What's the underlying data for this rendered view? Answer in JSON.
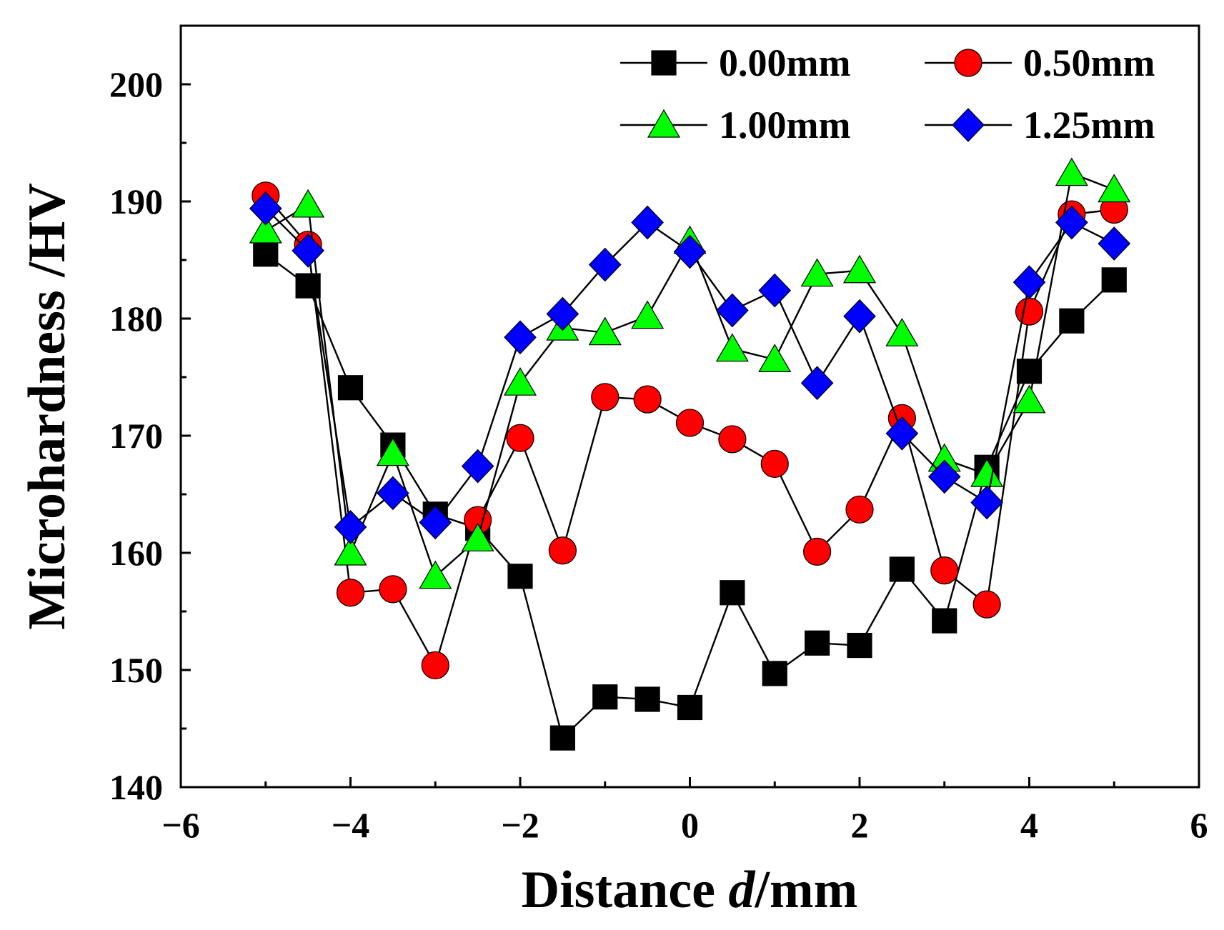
{
  "chart_data": {
    "type": "line",
    "xlabel": {
      "prefix": "Distance ",
      "italic": "d",
      "suffix": "/mm"
    },
    "ylabel": "Microhardness /HV",
    "xlim": [
      -6,
      6
    ],
    "ylim": [
      140,
      205
    ],
    "xticks": [
      -6,
      -4,
      -2,
      0,
      2,
      4,
      6
    ],
    "xtick_labels": [
      "−6",
      "−4",
      "−2",
      "0",
      "2",
      "4",
      "6"
    ],
    "yticks": [
      140,
      150,
      160,
      170,
      180,
      190,
      200
    ],
    "ytick_labels": [
      "140",
      "150",
      "160",
      "170",
      "180",
      "190",
      "200"
    ],
    "grid": false,
    "legend_position": "top-right",
    "x": [
      -5,
      -4.5,
      -4,
      -3.5,
      -3,
      -2.5,
      -2,
      -1.5,
      -1,
      -0.5,
      0,
      0.5,
      1,
      1.5,
      2,
      2.5,
      3,
      3.5,
      4,
      4.5,
      5
    ],
    "series": [
      {
        "name": "0.00mm",
        "color": "#000000",
        "marker": "square",
        "values": [
          185.5,
          182.8,
          174.1,
          169.2,
          163.3,
          162.1,
          158.0,
          144.2,
          147.7,
          147.5,
          146.8,
          156.6,
          149.7,
          152.3,
          152.1,
          158.6,
          154.2,
          167.3,
          175.5,
          179.8,
          183.3
        ]
      },
      {
        "name": "0.50mm",
        "color": "#ff0000",
        "marker": "circle",
        "values": [
          190.5,
          186.3,
          156.6,
          156.9,
          150.4,
          162.8,
          169.8,
          160.2,
          173.3,
          173.1,
          171.1,
          169.7,
          167.6,
          160.1,
          163.7,
          171.5,
          158.5,
          155.6,
          180.6,
          188.9,
          189.3
        ]
      },
      {
        "name": "1.00mm",
        "color": "#00ff00",
        "marker": "triangle",
        "values": [
          187.5,
          189.7,
          160.0,
          168.5,
          158.0,
          161.2,
          174.5,
          179.2,
          178.8,
          180.2,
          186.6,
          177.4,
          176.5,
          183.8,
          184.1,
          178.7,
          168.0,
          166.7,
          173.0,
          192.4,
          191.0
        ]
      },
      {
        "name": "1.25mm",
        "color": "#0000ff",
        "marker": "diamond",
        "values": [
          189.4,
          185.8,
          162.2,
          165.1,
          162.6,
          167.4,
          178.4,
          180.4,
          184.6,
          188.2,
          185.7,
          180.7,
          182.4,
          174.5,
          180.2,
          170.2,
          166.5,
          164.3,
          183.1,
          188.2,
          186.4
        ]
      }
    ]
  }
}
